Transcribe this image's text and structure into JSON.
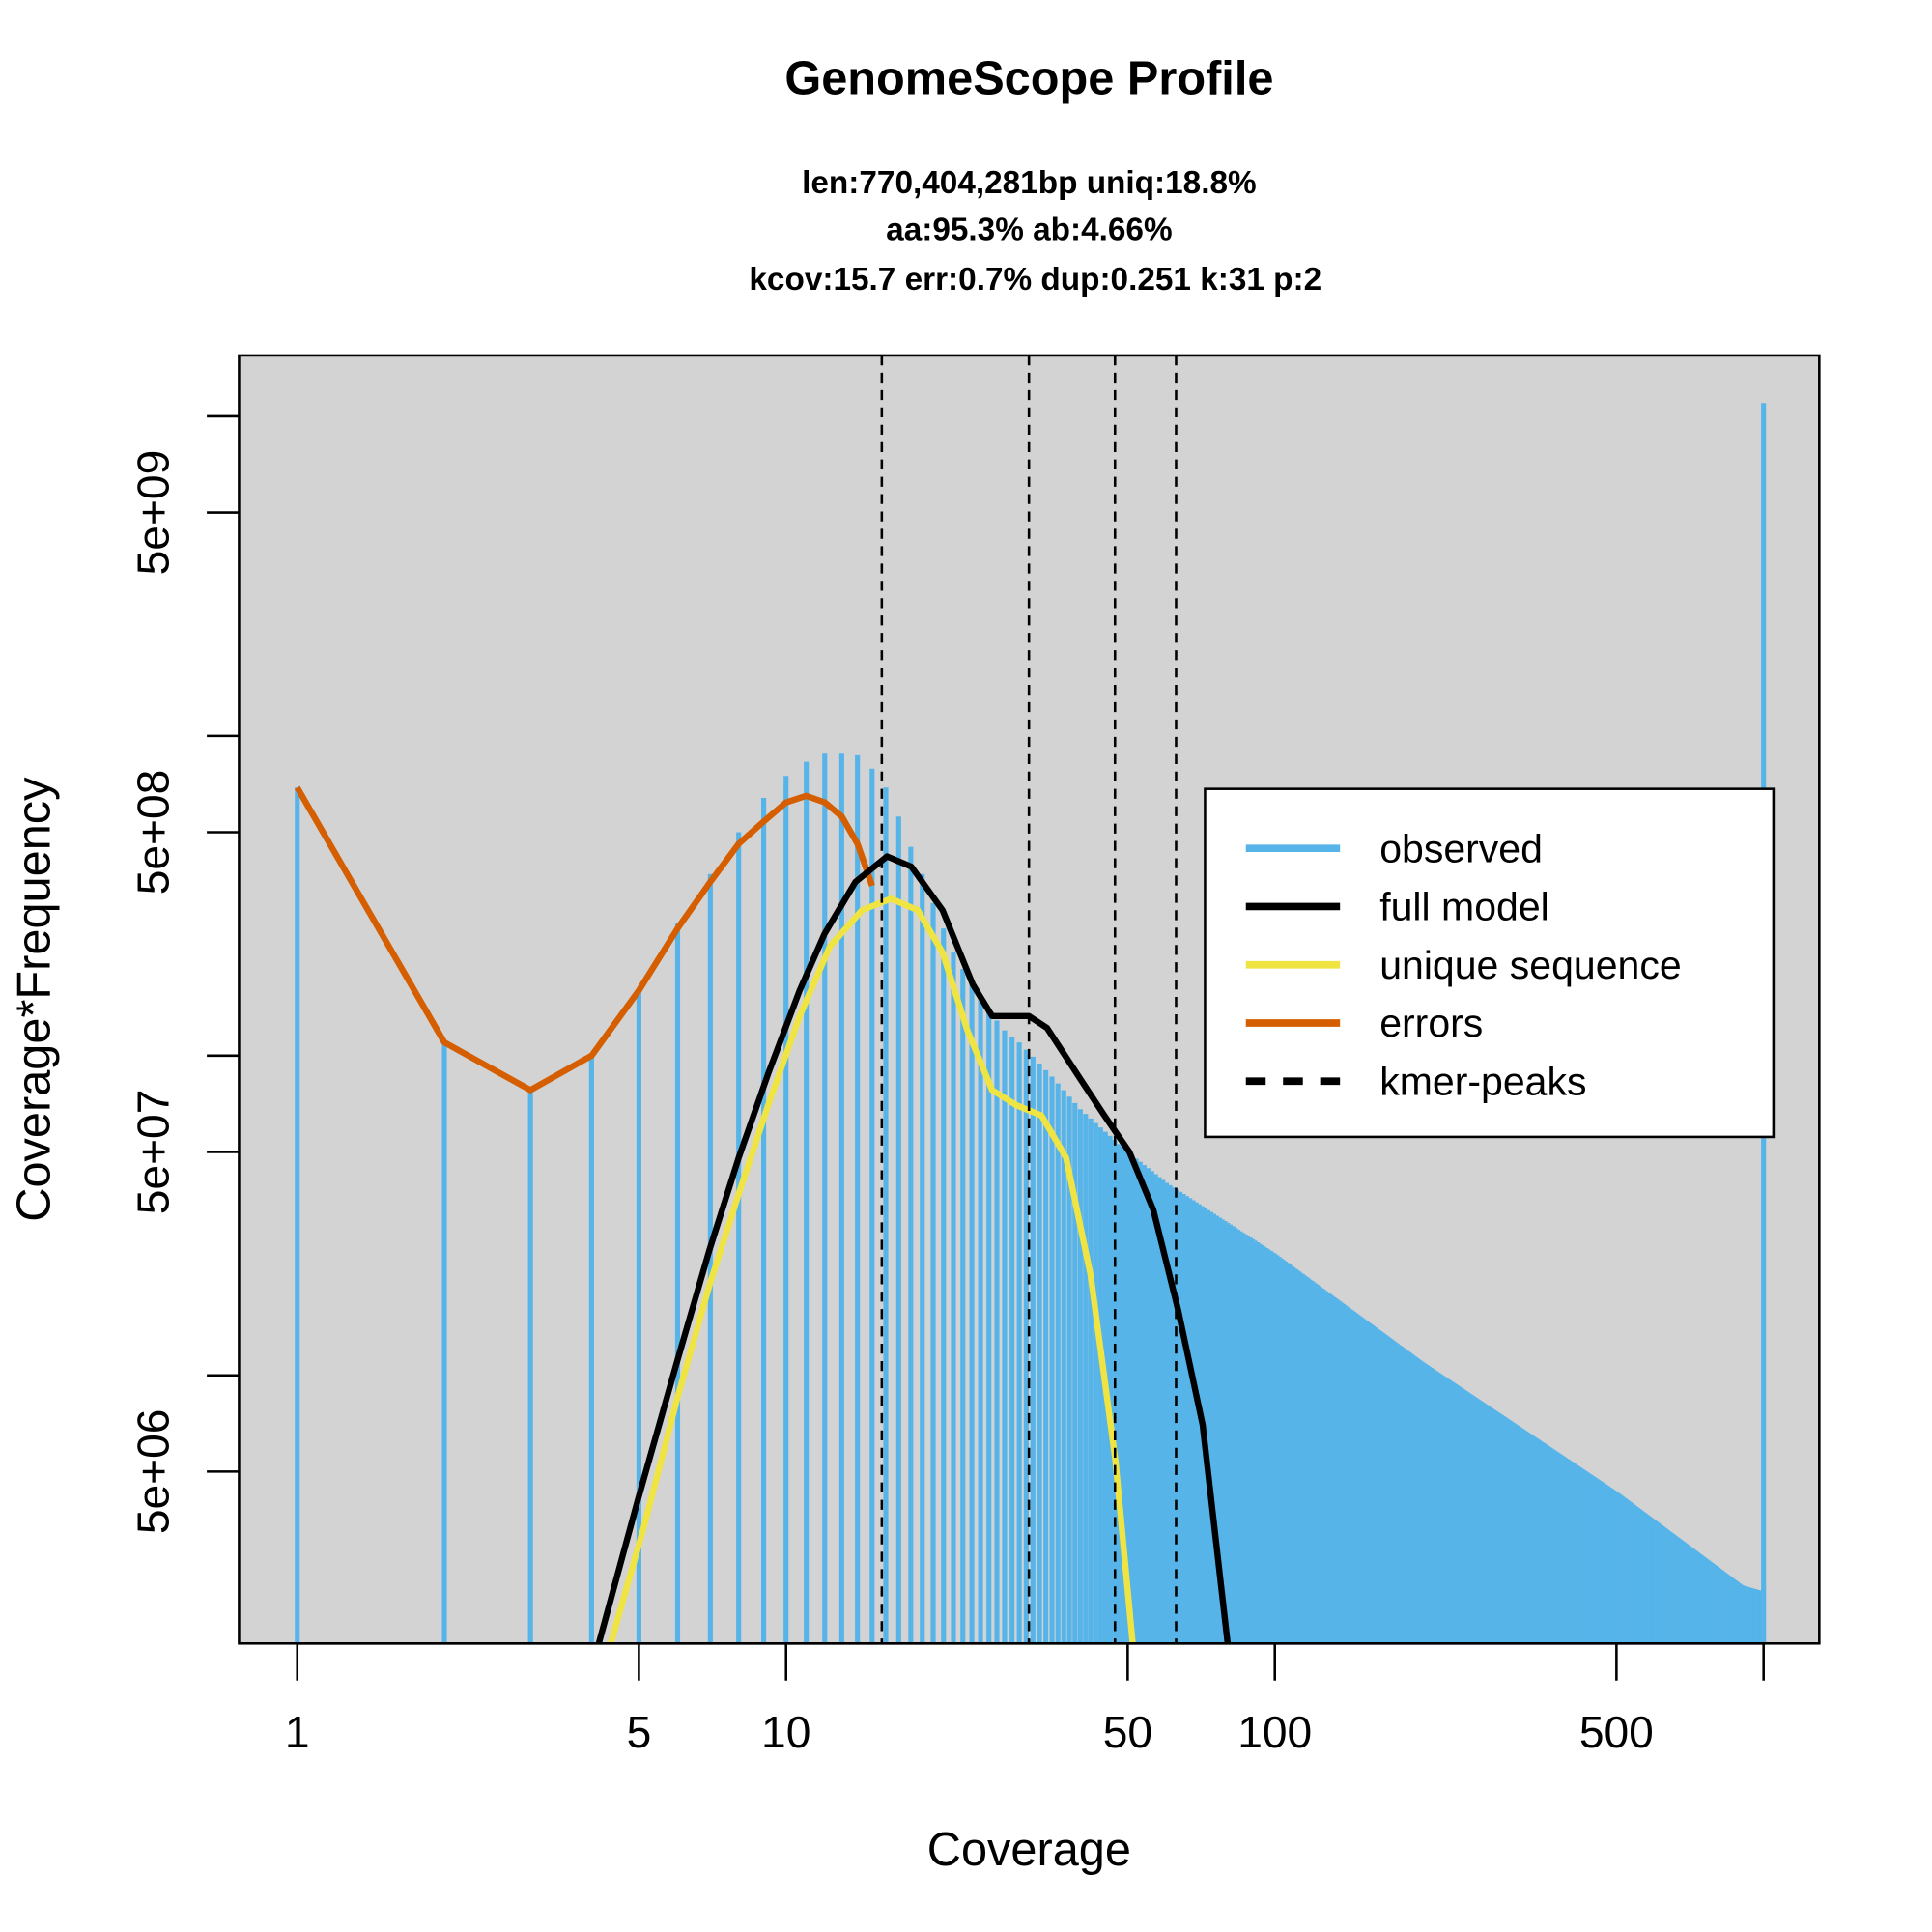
{
  "chart_data": {
    "type": "bar",
    "title": "GenomeScope Profile",
    "subtitle_lines": [
      "len:770,404,281bp uniq:18.8%",
      "aa:95.3% ab:4.66%",
      "kcov:15.7 err:0.7%  dup:0.251  k:31 p:2"
    ],
    "xlabel": "Coverage",
    "ylabel": "Coverage*Frequency",
    "xscale": "log",
    "yscale": "log",
    "xlim": [
      0.76,
      1300
    ],
    "ylim": [
      1450000.0,
      15500000000.0
    ],
    "x_ticks": [
      1,
      5,
      10,
      50,
      100,
      500,
      1000
    ],
    "x_tick_labels": [
      "1",
      "5",
      "10",
      "50",
      "100",
      "500",
      ""
    ],
    "y_ticks": [
      5000000.0,
      10000000.0,
      50000000.0,
      100000000.0,
      500000000.0,
      1000000000.0,
      5000000000.0,
      10000000000.0
    ],
    "y_tick_labels": [
      "5e+06",
      "",
      "5e+07",
      "",
      "5e+08",
      "",
      "5e+09",
      ""
    ],
    "background": "#d3d3d3",
    "legend_position": "right",
    "legend": [
      {
        "label": "observed",
        "color": "#56b4e9",
        "style": "solid"
      },
      {
        "label": "full model",
        "color": "#000000",
        "style": "solid"
      },
      {
        "label": "unique sequence",
        "color": "#f0e442",
        "style": "solid"
      },
      {
        "label": "errors",
        "color": "#d55e00",
        "style": "solid"
      },
      {
        "label": "kmer-peaks",
        "color": "#000000",
        "style": "dashed"
      }
    ],
    "observed": {
      "x": [
        1,
        2,
        3,
        4,
        5,
        6,
        7,
        8,
        9,
        10,
        11,
        12,
        13,
        14,
        15,
        16,
        17,
        18,
        19,
        20,
        22,
        25,
        28,
        30,
        35,
        40,
        50,
        60,
        100,
        200,
        500,
        900,
        999,
        1000
      ],
      "y": [
        690000000.0,
        110000000.0,
        78000000.0,
        100000000.0,
        160000000.0,
        260000000.0,
        370000000.0,
        500000000.0,
        640000000.0,
        750000000.0,
        830000000.0,
        880000000.0,
        880000000.0,
        870000000.0,
        790000000.0,
        690000000.0,
        560000000.0,
        450000000.0,
        370000000.0,
        300000000.0,
        210000000.0,
        150000000.0,
        120000000.0,
        110000000.0,
        86000000.0,
        68000000.0,
        50000000.0,
        40000000.0,
        24000000.0,
        11000000.0,
        4300000.0,
        2200000.0,
        2100000.0,
        11000000000.0
      ]
    },
    "full_model": {
      "x": [
        4.14,
        4.98,
        5.98,
        6.96,
        8.0,
        9.22,
        10.66,
        11.98,
        13.87,
        16.1,
        18.05,
        20.9,
        24.1,
        26.4,
        31.4,
        34.2,
        39.9,
        44.8,
        50.4,
        56.4,
        63.4,
        71.2,
        80.1
      ],
      "y": [
        1450000.0,
        4100000.0,
        11000000.0,
        24500000.0,
        48000000.0,
        89000000.0,
        160000000.0,
        240000000.0,
        350000000.0,
        420000000.0,
        390000000.0,
        285000000.0,
        167000000.0,
        133000000.0,
        133000000.0,
        122000000.0,
        85000000.0,
        65000000.0,
        50000000.0,
        33000000.0,
        16000000.0,
        7000000.0,
        1450000.0
      ]
    },
    "unique_sequence": {
      "x": [
        4.38,
        5.13,
        5.98,
        6.96,
        8.0,
        9.22,
        10.66,
        12.3,
        14.3,
        16.4,
        18.6,
        20.9,
        23.5,
        26.4,
        29.6,
        33.3,
        37.4,
        42.0,
        47.2,
        51.2
      ],
      "y": [
        1450000.0,
        3400000.0,
        8400000.0,
        19000000.0,
        37000000.0,
        71000000.0,
        133000000.0,
        220000000.0,
        285000000.0,
        310000000.0,
        285000000.0,
        210000000.0,
        120000000.0,
        78000000.0,
        70000000.0,
        65000000.0,
        48000000.0,
        20500000.0,
        5400000.0,
        1450000.0
      ]
    },
    "errors": {
      "x": [
        1,
        2,
        3,
        4,
        5,
        6,
        7,
        8,
        9,
        10,
        11,
        12,
        13,
        14,
        15
      ],
      "y": [
        690000000.0,
        110000000.0,
        78000000.0,
        100000000.0,
        160000000.0,
        250000000.0,
        350000000.0,
        460000000.0,
        540000000.0,
        620000000.0,
        650000000.0,
        620000000.0,
        560000000.0,
        460000000.0,
        340000000.0
      ]
    },
    "kmer_peaks": [
      15.7,
      31.4,
      47.1,
      62.8
    ]
  }
}
